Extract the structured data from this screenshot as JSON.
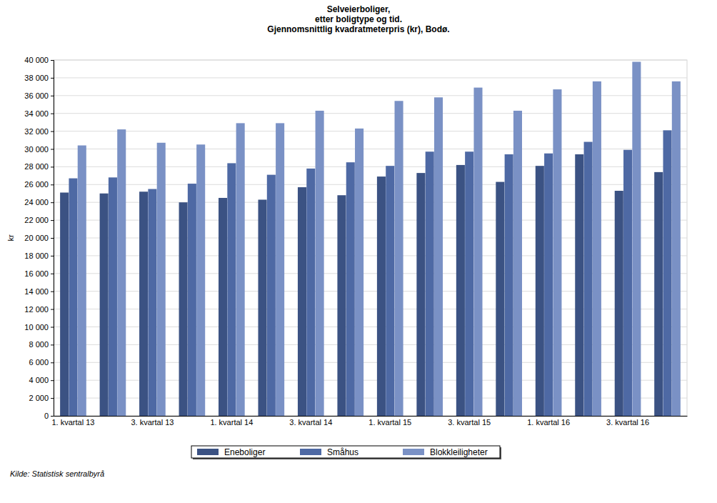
{
  "chart_data": {
    "type": "bar",
    "title": [
      "Selveierboliger,",
      "etter boligtype og tid.",
      "Gjennomsnittlig kvadratmeterpris (kr), Bodø."
    ],
    "y_label": "kr",
    "annotations": [
      "Kilde: Statistisk sentralbyrå"
    ],
    "categories": [
      "1. kvartal 13",
      null,
      "3. kvartal 13",
      null,
      "1. kvartal 14",
      null,
      "3. kvartal 14",
      null,
      "1. kvartal 15",
      null,
      "3. kvartal 15",
      null,
      "1. kvartal 16",
      null,
      "3. kvartal 16",
      null
    ],
    "series": [
      {
        "name": "Eneboliger",
        "color": "#3b5283",
        "values": [
          25100,
          25000,
          25200,
          24000,
          24500,
          24300,
          25700,
          24800,
          26900,
          27300,
          28200,
          26300,
          28100,
          29400,
          25300,
          27400
        ]
      },
      {
        "name": "Småhus",
        "color": "#4e69a4",
        "values": [
          26700,
          26800,
          25500,
          26100,
          28400,
          27100,
          27800,
          28500,
          28100,
          29700,
          29700,
          29400,
          29500,
          30800,
          29900,
          32100
        ]
      },
      {
        "name": "Blokkleiligheter",
        "color": "#7a91c5",
        "values": [
          30400,
          32200,
          30700,
          30500,
          32900,
          32900,
          34300,
          32300,
          35400,
          35800,
          36900,
          34300,
          36700,
          37600,
          39800,
          37600
        ]
      }
    ],
    "ylim": [
      0,
      40000
    ],
    "yticks": [
      0,
      {
        "value": 2000,
        "label": "2 000"
      },
      {
        "value": 4000,
        "label": "4 000"
      },
      {
        "value": 6000,
        "label": "6 000"
      },
      {
        "value": 8000,
        "label": "8 000"
      },
      {
        "value": 10000,
        "label": "10 000"
      },
      {
        "value": 12000,
        "label": "12 000"
      },
      {
        "value": 14000,
        "label": "14 000"
      },
      {
        "value": 16000,
        "label": "16 000"
      },
      {
        "value": 18000,
        "label": "18 000"
      },
      {
        "value": 20000,
        "label": "20 000"
      },
      {
        "value": 22000,
        "label": "22 000"
      },
      {
        "value": 24000,
        "label": "24 000"
      },
      {
        "value": 26000,
        "label": "26 000"
      },
      {
        "value": 28000,
        "label": "28 000"
      },
      {
        "value": 30000,
        "label": "30 000"
      },
      {
        "value": 32000,
        "label": "32 000"
      },
      {
        "value": 34000,
        "label": "34 000"
      },
      {
        "value": 36000,
        "label": "36 000"
      },
      {
        "value": 38000,
        "label": "38 000"
      },
      {
        "value": 40000,
        "label": "40 000"
      }
    ],
    "grid": true,
    "legend": "bottom"
  }
}
